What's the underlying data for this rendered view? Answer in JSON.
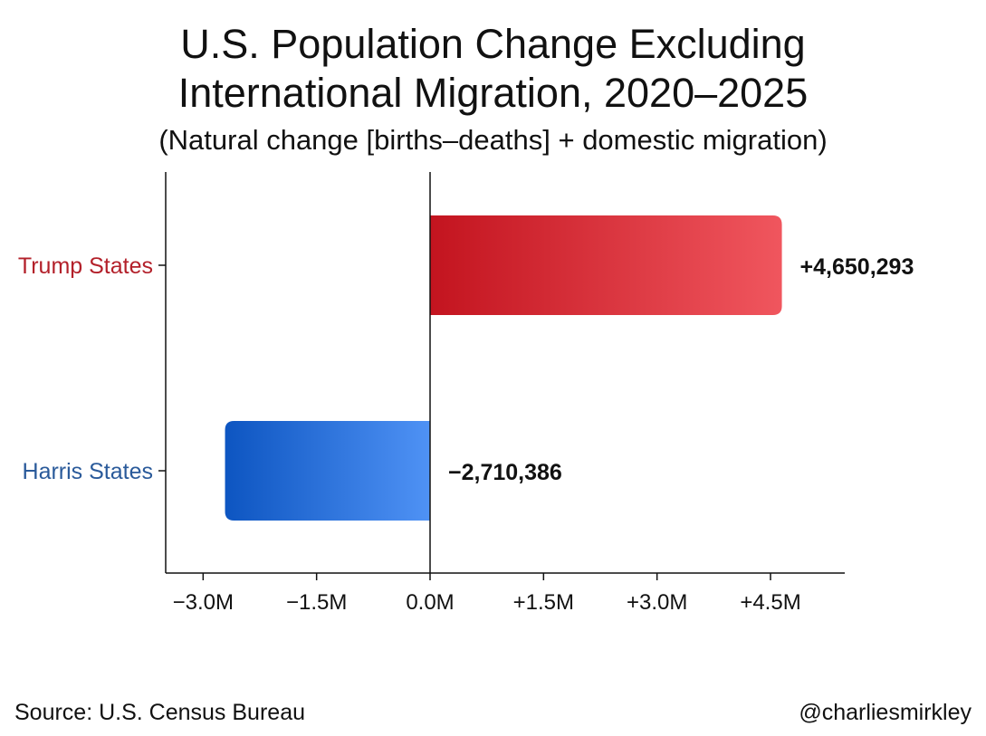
{
  "chart_data": {
    "type": "bar",
    "orientation": "horizontal",
    "title_lines": [
      "U.S. Population Change Excluding",
      "International Migration, 2020–2025"
    ],
    "subtitle": "(Natural change [births–deaths] + domestic migration)",
    "categories": [
      "Trump States",
      "Harris States"
    ],
    "values": [
      4650293,
      -2710386
    ],
    "value_labels": [
      "+4,650,293",
      "−2,710,386"
    ],
    "xlim": [
      -3500000,
      5000000
    ],
    "xticks": [
      -3000000,
      -1500000,
      0,
      1500000,
      3000000,
      4500000
    ],
    "xtick_labels": [
      "−3.0M",
      "−1.5M",
      "0.0M",
      "+1.5M",
      "+3.0M",
      "+4.5M"
    ],
    "xlabel": "",
    "ylabel": "",
    "grid": false,
    "colors": {
      "Trump States": {
        "label": "#b3202a",
        "bar_start": "#c3141f",
        "bar_end": "#f0565e"
      },
      "Harris States": {
        "label": "#2a5a9a",
        "bar_start": "#0d55c1",
        "bar_end": "#4f92f5"
      }
    }
  },
  "footer": {
    "source": "Source: U.S. Census Bureau",
    "handle": "@charliesmirkley"
  }
}
